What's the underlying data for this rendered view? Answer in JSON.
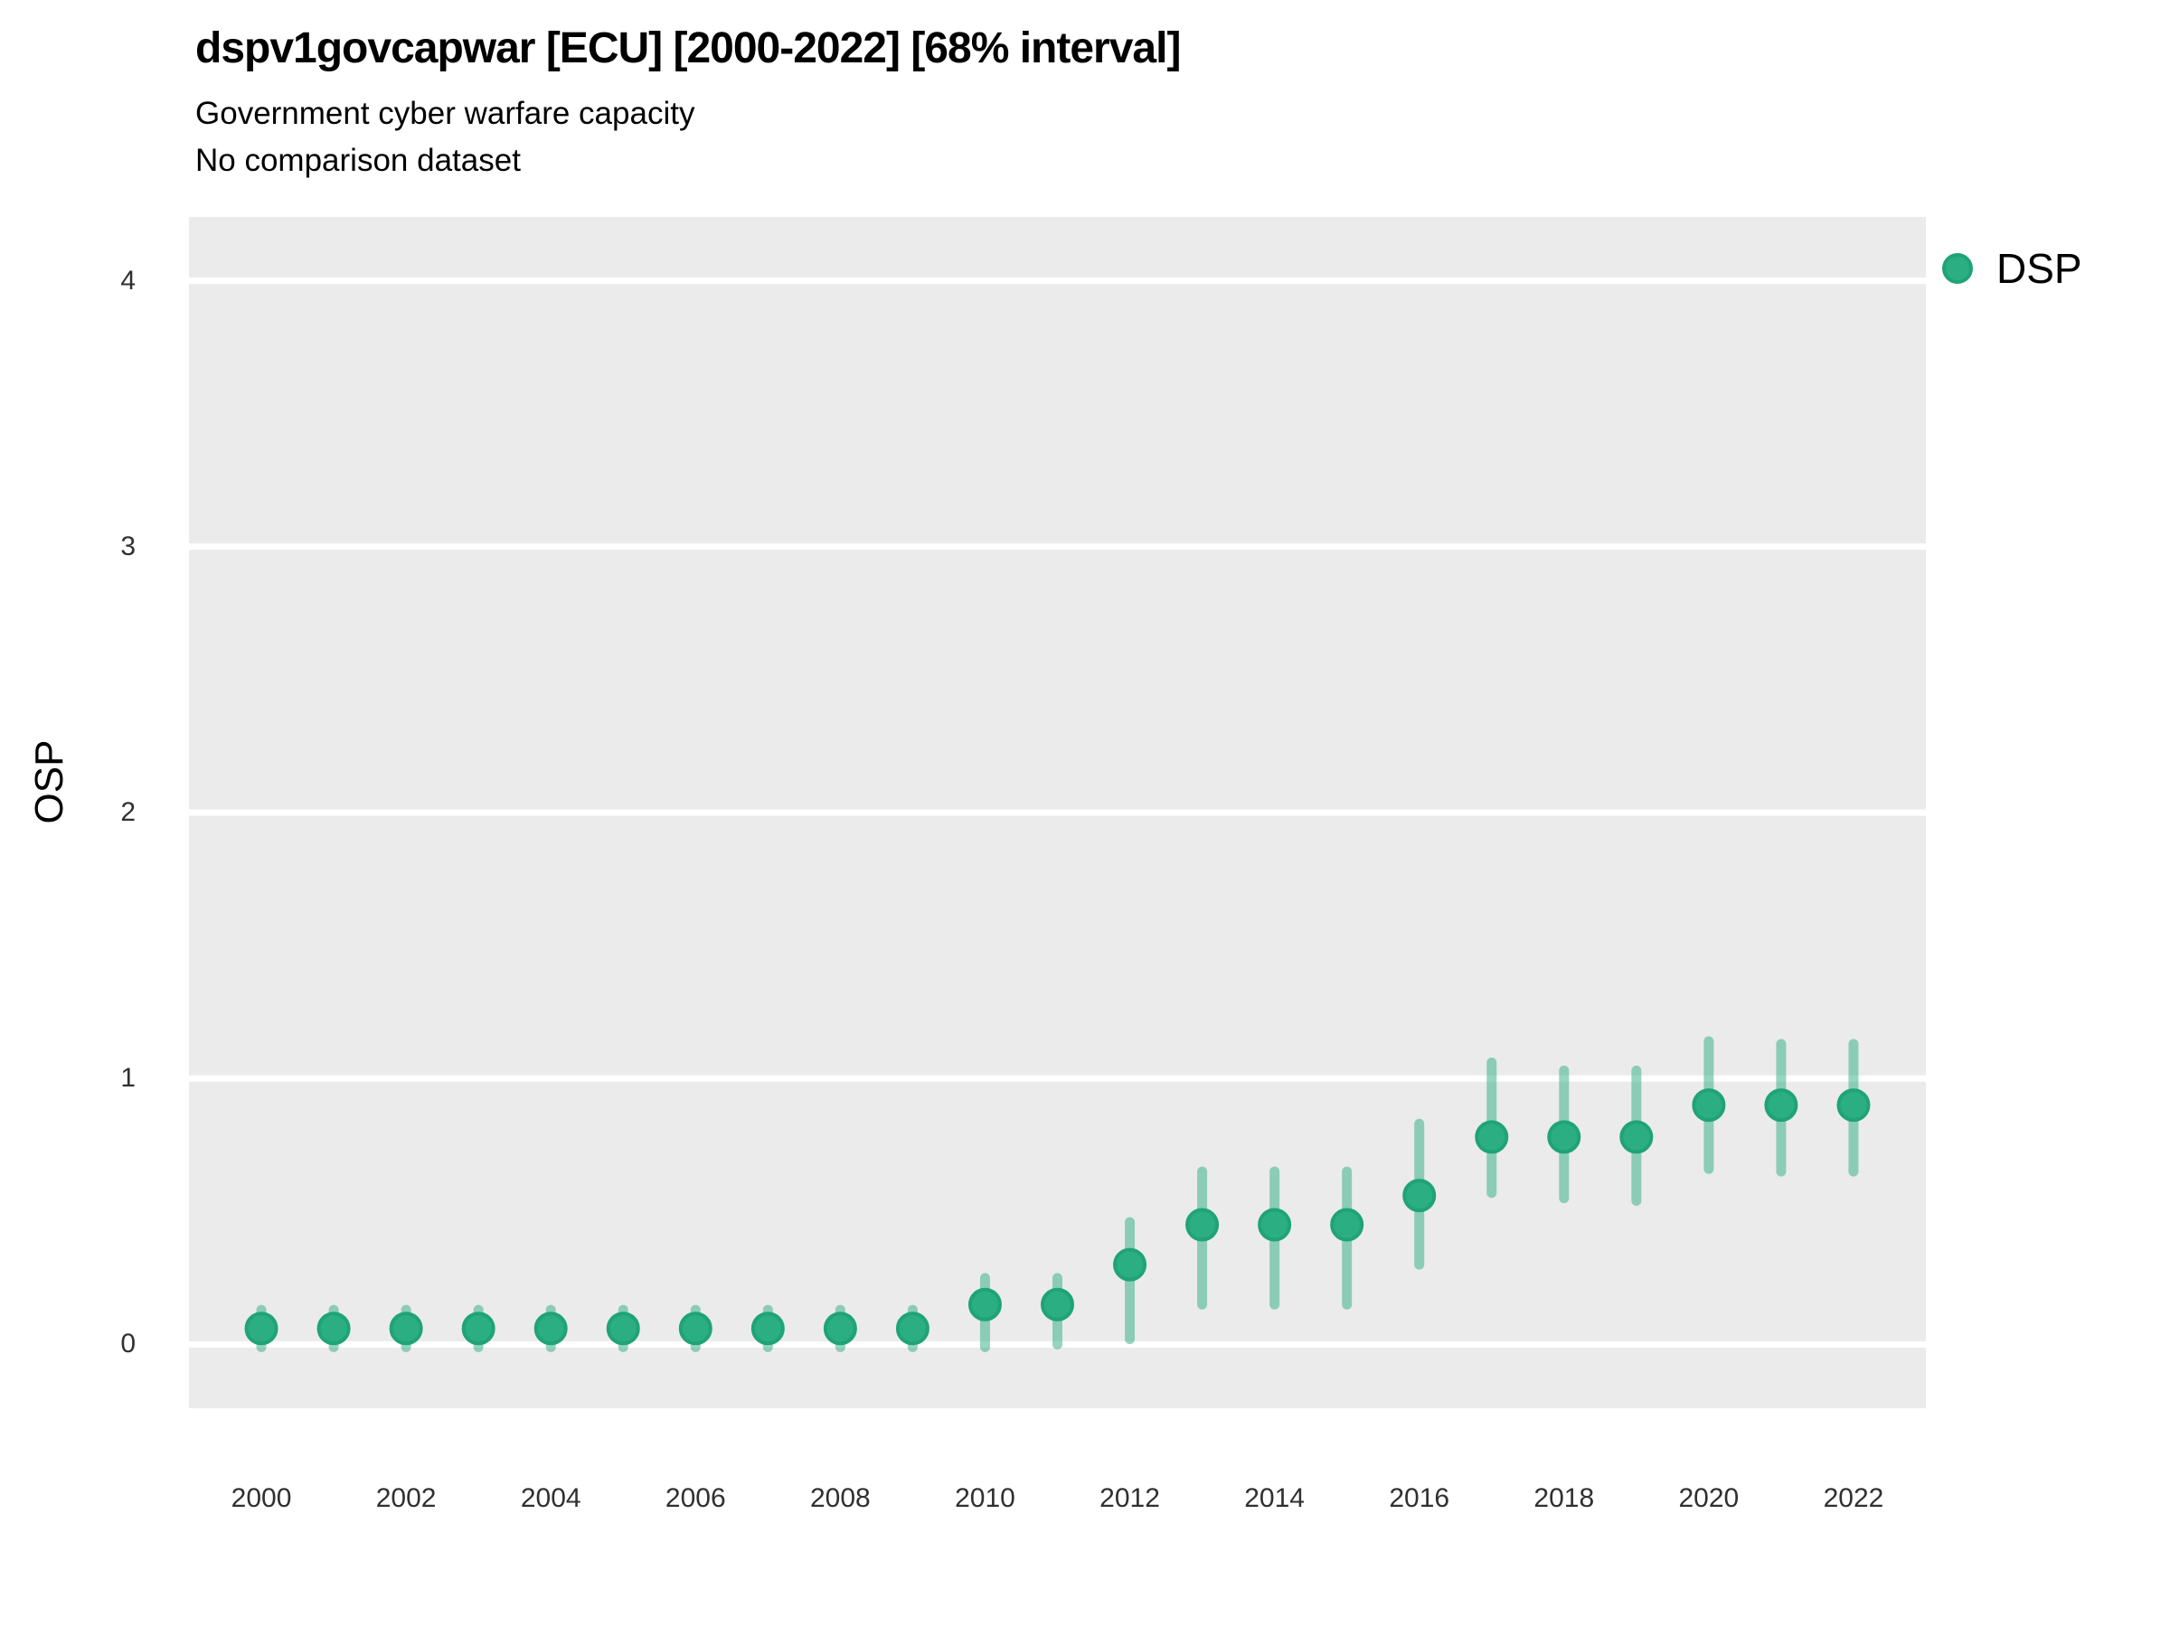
{
  "header": {
    "title": "dspv1govcapwar [ECU] [2000-2022] [68% interval]",
    "subtitle": "Government cyber warfare capacity",
    "note": "No comparison dataset"
  },
  "legend": {
    "label": "DSP"
  },
  "axes": {
    "y_label": "OSP",
    "y_ticks": [
      0,
      1,
      2,
      3,
      4
    ],
    "x_ticks": [
      2000,
      2002,
      2004,
      2006,
      2008,
      2010,
      2012,
      2014,
      2016,
      2018,
      2020,
      2022
    ]
  },
  "colors": {
    "panel_bg": "#EBEBEB",
    "grid": "#FFFFFF",
    "point_fill": "#2CAE83",
    "point_stroke": "#1FA377",
    "interval": "rgba(44,174,131,0.5)",
    "tick_text": "#303030"
  },
  "chart_data": {
    "type": "scatter",
    "title": "dspv1govcapwar [ECU] [2000-2022] [68% interval]",
    "subtitle": "Government cyber warfare capacity",
    "note": "No comparison dataset",
    "xlabel": "",
    "ylabel": "OSP",
    "xlim": [
      1999,
      2023
    ],
    "ylim": [
      -0.24,
      4.24
    ],
    "grid": "horizontal-major-only",
    "legend_position": "right",
    "interval_label": "68% interval",
    "series": [
      {
        "name": "DSP",
        "x": [
          2000,
          2001,
          2002,
          2003,
          2004,
          2005,
          2006,
          2007,
          2008,
          2009,
          2010,
          2011,
          2012,
          2013,
          2014,
          2015,
          2016,
          2017,
          2018,
          2019,
          2020,
          2021,
          2022
        ],
        "y": [
          0.06,
          0.06,
          0.06,
          0.06,
          0.06,
          0.06,
          0.06,
          0.06,
          0.06,
          0.06,
          0.15,
          0.15,
          0.3,
          0.45,
          0.45,
          0.45,
          0.56,
          0.78,
          0.78,
          0.78,
          0.9,
          0.9,
          0.9
        ],
        "low": [
          -0.01,
          -0.01,
          -0.01,
          -0.01,
          -0.01,
          -0.01,
          -0.01,
          -0.01,
          -0.01,
          -0.01,
          -0.01,
          0.0,
          0.02,
          0.15,
          0.15,
          0.15,
          0.3,
          0.57,
          0.55,
          0.54,
          0.66,
          0.65,
          0.65
        ],
        "high": [
          0.13,
          0.13,
          0.13,
          0.13,
          0.13,
          0.13,
          0.13,
          0.13,
          0.13,
          0.13,
          0.25,
          0.25,
          0.46,
          0.65,
          0.65,
          0.65,
          0.83,
          1.06,
          1.03,
          1.03,
          1.14,
          1.13,
          1.13
        ]
      }
    ]
  }
}
